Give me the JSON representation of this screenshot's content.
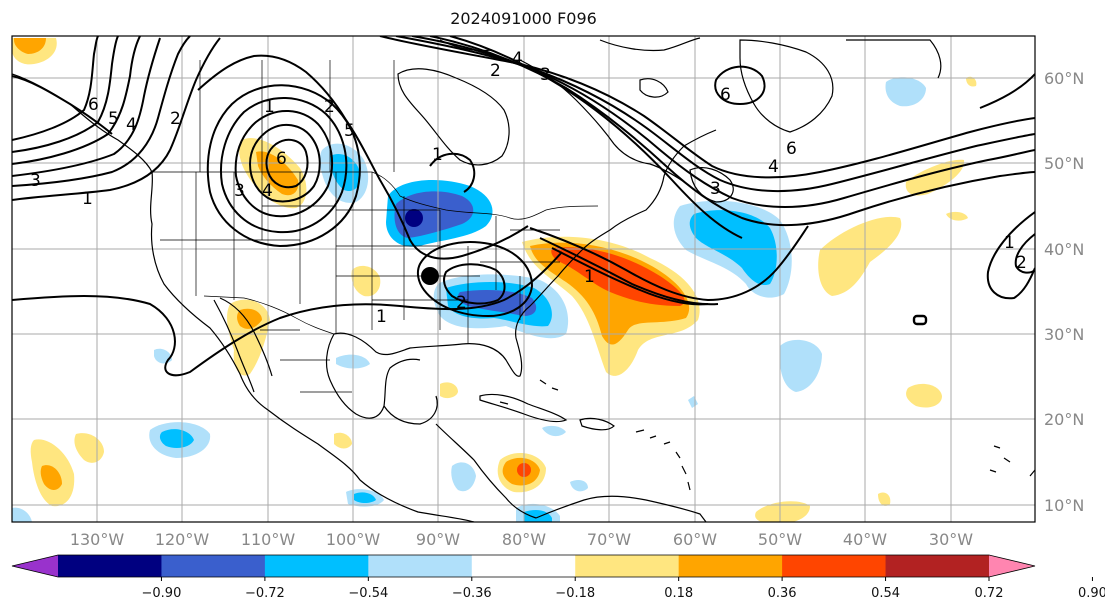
{
  "title": "2024091000 F096",
  "longitude_labels": [
    "130°W",
    "120°W",
    "110°W",
    "100°W",
    "90°W",
    "80°W",
    "70°W",
    "60°W",
    "50°W",
    "40°W",
    "30°W"
  ],
  "latitude_labels": [
    "60°N",
    "50°N",
    "40°N",
    "30°N",
    "20°N",
    "10°N"
  ],
  "colorbar": {
    "colors": [
      "#9932cc",
      "#000080",
      "#3a5fcd",
      "#00bfff",
      "#b0e0fa",
      "#ffffff",
      "#ffe680",
      "#ffa500",
      "#ff4500",
      "#b22222",
      "#ff85b0"
    ],
    "tick_labels": [
      "−0.90",
      "−0.72",
      "−0.54",
      "−0.36",
      "−0.18",
      "0.18",
      "0.36",
      "0.54",
      "0.72",
      "0.90"
    ]
  },
  "contour_labels": [
    "1",
    "2",
    "3",
    "4",
    "5",
    "6",
    "2",
    "3",
    "4",
    "5",
    "6",
    "1",
    "6",
    "4",
    "3",
    "2",
    "1",
    "3",
    "4",
    "6",
    "1",
    "2",
    "1",
    "2",
    "1"
  ],
  "marker": {
    "name": "black-dot",
    "color": "#000000"
  },
  "colors": {
    "grid": "#aaaaaa",
    "coast": "#000000",
    "label": "#888888"
  }
}
